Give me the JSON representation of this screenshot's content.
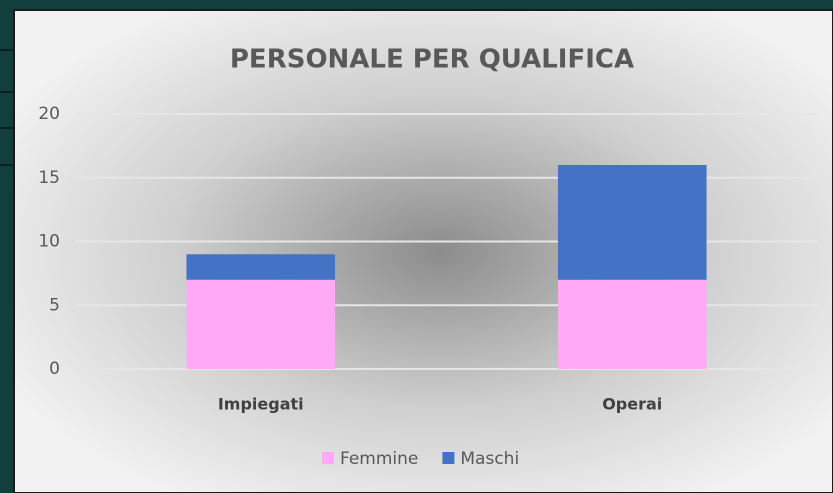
{
  "chart_data": {
    "type": "stacked_bar",
    "title": "PERSONALE PER QUALIFICA",
    "categories": [
      "Impiegati",
      "Operai"
    ],
    "series": [
      {
        "name": "Femmine",
        "color": "#ffa9f7",
        "values": [
          7,
          7
        ]
      },
      {
        "name": "Maschi",
        "color": "#4472c4",
        "values": [
          2,
          9
        ]
      }
    ],
    "ylim": [
      0,
      20
    ],
    "yticks": [
      0,
      5,
      10,
      15,
      20
    ],
    "grid": true,
    "legend": "bottom"
  }
}
